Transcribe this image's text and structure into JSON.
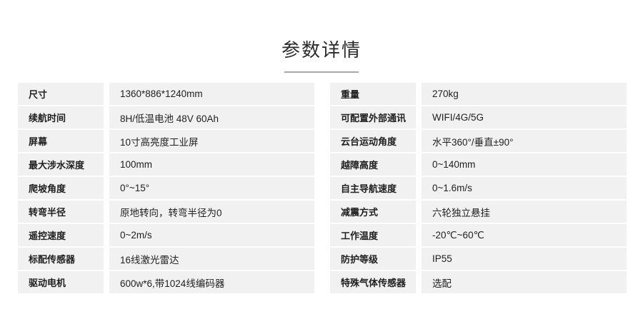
{
  "page": {
    "title": "参数详情"
  },
  "colors": {
    "row_bg": "#f1f1f2",
    "text": "#1f1f1f",
    "title_underline": "#a8a8a8",
    "page_bg": "#ffffff"
  },
  "spec_table_left": [
    {
      "label": "尺寸",
      "value": "1360*886*1240mm"
    },
    {
      "label": "续航时间",
      "value": "8H/低温电池 48V 60Ah"
    },
    {
      "label": "屏幕",
      "value": "10寸高亮度工业屏"
    },
    {
      "label": "最大涉水深度",
      "value": "100mm"
    },
    {
      "label": "爬坡角度",
      "value": "0°~15°"
    },
    {
      "label": "转弯半径",
      "value": "原地转向，转弯半径为0"
    },
    {
      "label": "遥控速度",
      "value": "0~2m/s"
    },
    {
      "label": "标配传感器",
      "value": "16线激光雷达"
    },
    {
      "label": "驱动电机",
      "value": "600w*6,带1024线编码器"
    }
  ],
  "spec_table_right": [
    {
      "label": "重量",
      "value": "270kg"
    },
    {
      "label": "可配置外部通讯",
      "value": "WIFI/4G/5G"
    },
    {
      "label": "云台运动角度",
      "value": "水平360°/垂直±90°"
    },
    {
      "label": "越障高度",
      "value": "0~140mm"
    },
    {
      "label": "自主导航速度",
      "value": "0~1.6m/s"
    },
    {
      "label": "减震方式",
      "value": "六轮独立悬挂"
    },
    {
      "label": "工作温度",
      "value": "-20℃~60℃"
    },
    {
      "label": "防护等级",
      "value": "IP55"
    },
    {
      "label": "特殊气体传感器",
      "value": "选配"
    }
  ]
}
